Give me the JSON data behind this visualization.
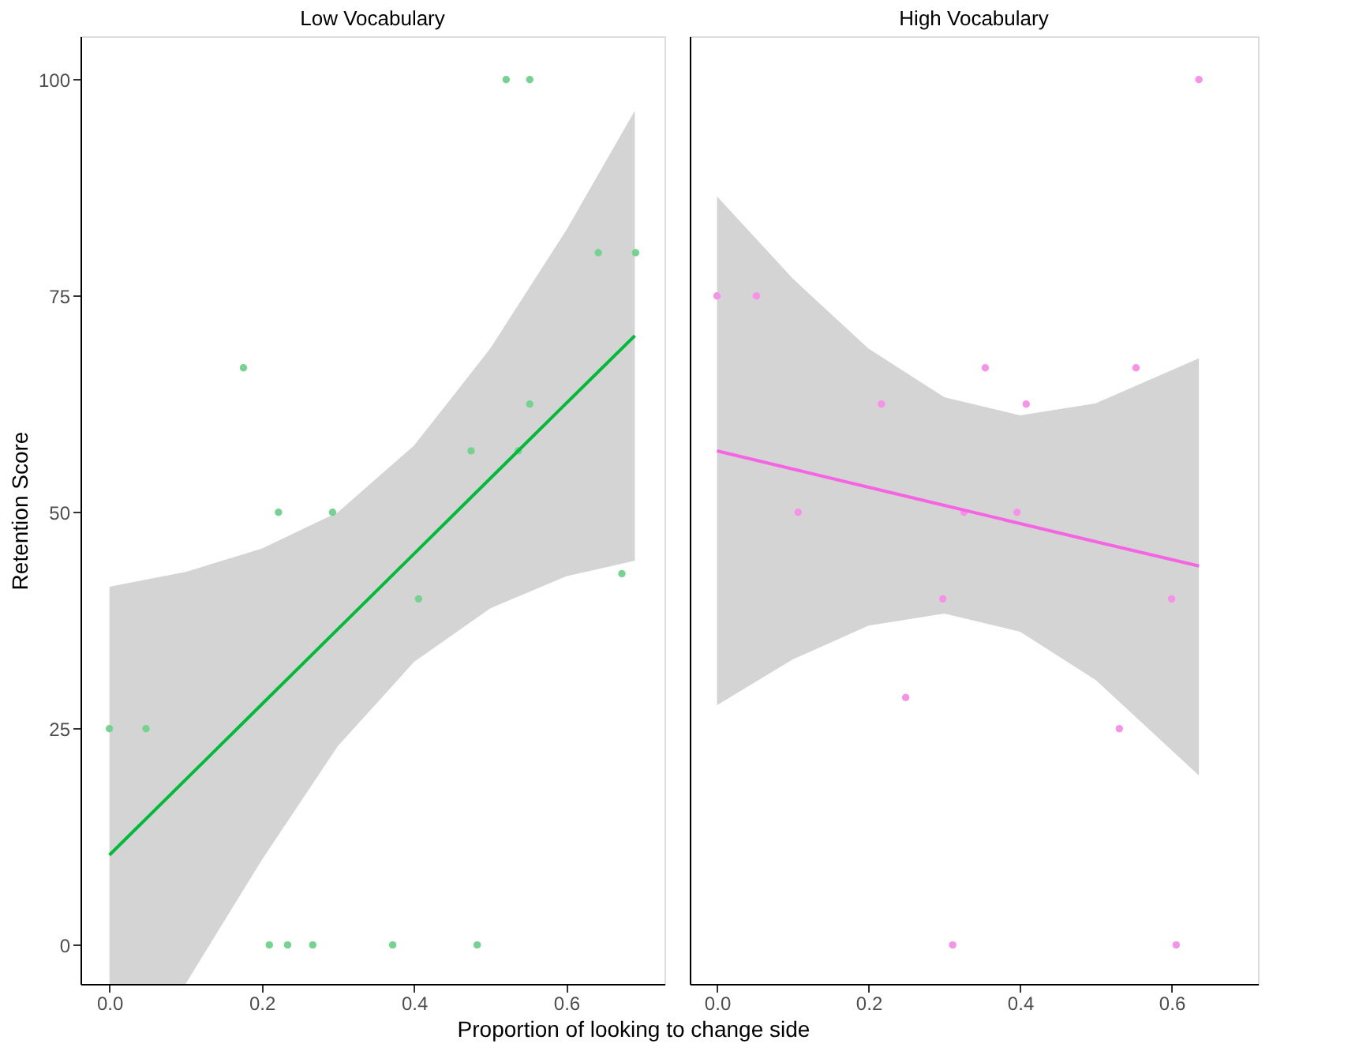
{
  "chart_data": [
    {
      "type": "scatter",
      "title": "Low Vocabulary",
      "xlabel": "Proportion of looking to change side",
      "ylabel": "Retention Score",
      "xlim": [
        -0.038,
        0.729
      ],
      "xticks": [
        {
          "value": 0,
          "label": "0.0"
        },
        {
          "value": 0.2,
          "label": "0.2"
        },
        {
          "value": 0.4,
          "label": "0.4"
        },
        {
          "value": 0.6,
          "label": "0.6"
        }
      ],
      "ylim": [
        -4.5,
        105
      ],
      "yticks": [
        0,
        25,
        50,
        75,
        100
      ],
      "grid": false,
      "series": [
        {
          "color": "#74d48f",
          "marker": "circle",
          "x": [
            0,
            0.048,
            0.176,
            0.21,
            0.222,
            0.234,
            0.267,
            0.293,
            0.372,
            0.406,
            0.475,
            0.483,
            0.521,
            0.537,
            0.552,
            0.552,
            0.642,
            0.673,
            0.691
          ],
          "values": [
            25,
            25,
            66.7,
            0,
            50,
            0,
            0,
            50,
            0,
            40,
            57.1,
            0,
            100,
            57.1,
            100,
            62.5,
            80,
            42.9,
            80
          ]
        },
        {
          "type": "line",
          "color": "#00ba38",
          "line_style": "solid",
          "x": [
            0,
            0.1,
            0.2,
            0.3,
            0.4,
            0.5,
            0.6,
            0.69
          ],
          "values": [
            10.4,
            19.1,
            27.8,
            36.5,
            45.2,
            53.9,
            62.6,
            70.4
          ],
          "lower": [
            -4.5,
            -4.5,
            9.8,
            23,
            32.7,
            38.9,
            42.6,
            44.4
          ],
          "upper": [
            41.4,
            43.1,
            45.8,
            50,
            57.7,
            68.9,
            82.6,
            96.4
          ]
        }
      ]
    },
    {
      "type": "scatter",
      "title": "High Vocabulary",
      "tick_labels": "x",
      "xlim": [
        -0.036,
        0.714
      ],
      "xticks": [
        {
          "value": 0,
          "label": "0.0"
        },
        {
          "value": 0.2,
          "label": "0.2"
        },
        {
          "value": 0.4,
          "label": "0.4"
        },
        {
          "value": 0.6,
          "label": "0.6"
        }
      ],
      "ylim": [
        -4.5,
        105
      ],
      "yticks": [
        0,
        25,
        50,
        75,
        100
      ],
      "grid": false,
      "series": [
        {
          "color": "#f792e8",
          "marker": "circle",
          "x": [
            0,
            0.052,
            0.107,
            0.217,
            0.249,
            0.298,
            0.311,
            0.326,
            0.354,
            0.396,
            0.408,
            0.531,
            0.553,
            0.6,
            0.606,
            0.636
          ],
          "values": [
            75,
            75,
            50,
            62.5,
            28.6,
            40,
            0,
            50,
            66.7,
            50,
            62.5,
            25,
            66.7,
            40,
            0,
            100
          ]
        },
        {
          "type": "line",
          "color": "#f564e3",
          "line_style": "solid",
          "x": [
            0,
            0.1,
            0.2,
            0.3,
            0.4,
            0.5,
            0.636
          ],
          "values": [
            57.1,
            55.0,
            52.9,
            50.8,
            48.7,
            46.6,
            43.8
          ],
          "lower": [
            27.7,
            33,
            36.9,
            38.3,
            36.2,
            30.6,
            19.6
          ],
          "upper": [
            86.5,
            77,
            68.9,
            63.3,
            61.2,
            62.6,
            67.8
          ]
        }
      ]
    }
  ]
}
